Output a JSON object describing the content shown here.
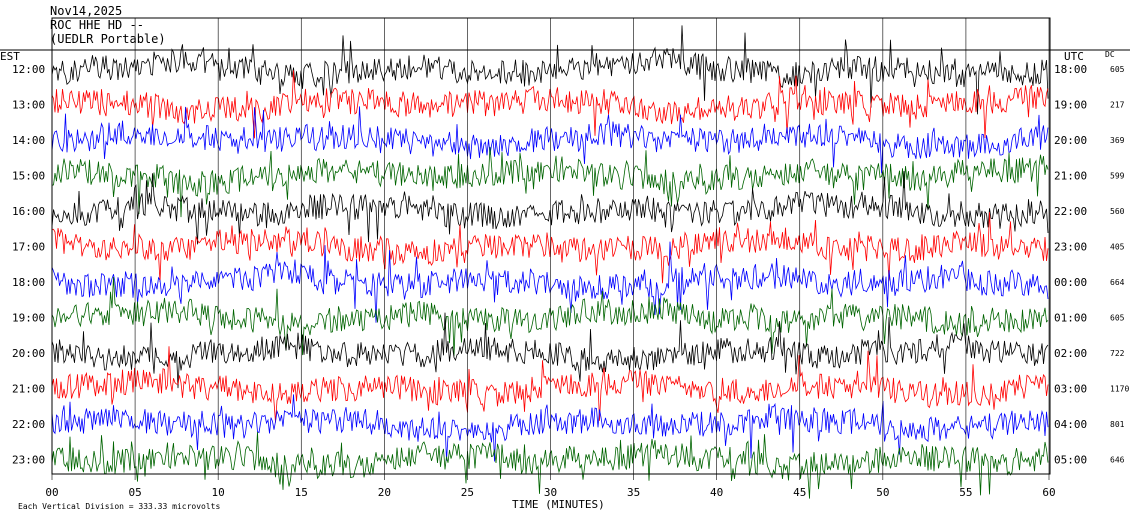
{
  "header": {
    "date": "Nov14,2025",
    "station": "ROC HHE HD --",
    "network": "(UEDLR Portable)",
    "left_tz": "EST",
    "right_tz": "UTC",
    "dc_label": "DC"
  },
  "footer": {
    "scale_note": "Each Vertical Division =  333.33 microvolts",
    "axis_title": "TIME (MINUTES)"
  },
  "chart_data": {
    "type": "line",
    "title": "",
    "xlabel": "TIME (MINUTES)",
    "ylabel": "",
    "xlim": [
      0,
      60
    ],
    "x_ticks": [
      "00",
      "05",
      "10",
      "15",
      "20",
      "25",
      "30",
      "35",
      "40",
      "45",
      "50",
      "55",
      "60"
    ],
    "trace_colors": [
      "#000000",
      "#ff0000",
      "#0000ff",
      "#006400"
    ],
    "rows": [
      {
        "est": "12:00",
        "utc": "18:00",
        "dc": "605"
      },
      {
        "est": "13:00",
        "utc": "19:00",
        "dc": "217"
      },
      {
        "est": "14:00",
        "utc": "20:00",
        "dc": "369"
      },
      {
        "est": "15:00",
        "utc": "21:00",
        "dc": "599"
      },
      {
        "est": "16:00",
        "utc": "22:00",
        "dc": "560"
      },
      {
        "est": "17:00",
        "utc": "23:00",
        "dc": "405"
      },
      {
        "est": "18:00",
        "utc": "00:00",
        "dc": "664"
      },
      {
        "est": "19:00",
        "utc": "01:00",
        "dc": "605"
      },
      {
        "est": "20:00",
        "utc": "02:00",
        "dc": "722"
      },
      {
        "est": "21:00",
        "utc": "03:00",
        "dc": "1170"
      },
      {
        "est": "22:00",
        "utc": "04:00",
        "dc": "801"
      },
      {
        "est": "23:00",
        "utc": "05:00",
        "dc": "646"
      }
    ]
  }
}
